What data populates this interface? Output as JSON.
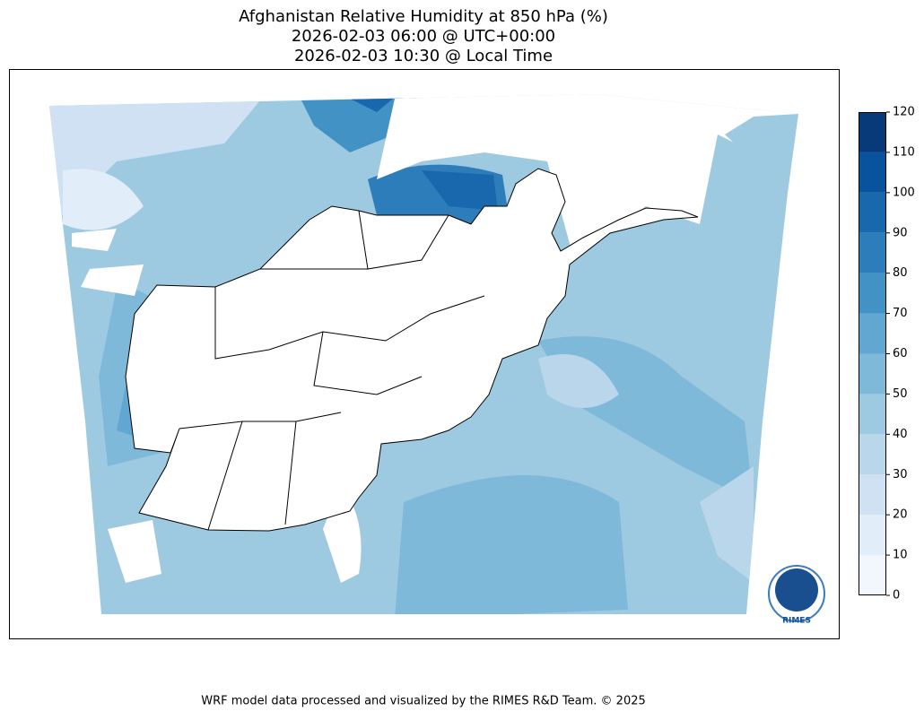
{
  "title": [
    "Afghanistan Relative Humidity at 850 hPa (%)",
    "2026-02-03 06:00 @ UTC+00:00",
    "2026-02-03 10:30 @ Local Time"
  ],
  "colorbar": {
    "ticks": [
      0,
      10,
      20,
      30,
      40,
      50,
      60,
      70,
      80,
      90,
      100,
      110,
      120
    ],
    "colors": [
      "#f1f7fd",
      "#e1edf8",
      "#cfe1f2",
      "#bad6eb",
      "#9ecae1",
      "#7fb9da",
      "#61a7d2",
      "#4292c6",
      "#2d7dbb",
      "#1967ad",
      "#09529d",
      "#083a7a"
    ]
  },
  "logo": {
    "text": "RIMES"
  },
  "footer": "WRF model data processed and visualized by the RIMES R&D Team. © 2025"
}
